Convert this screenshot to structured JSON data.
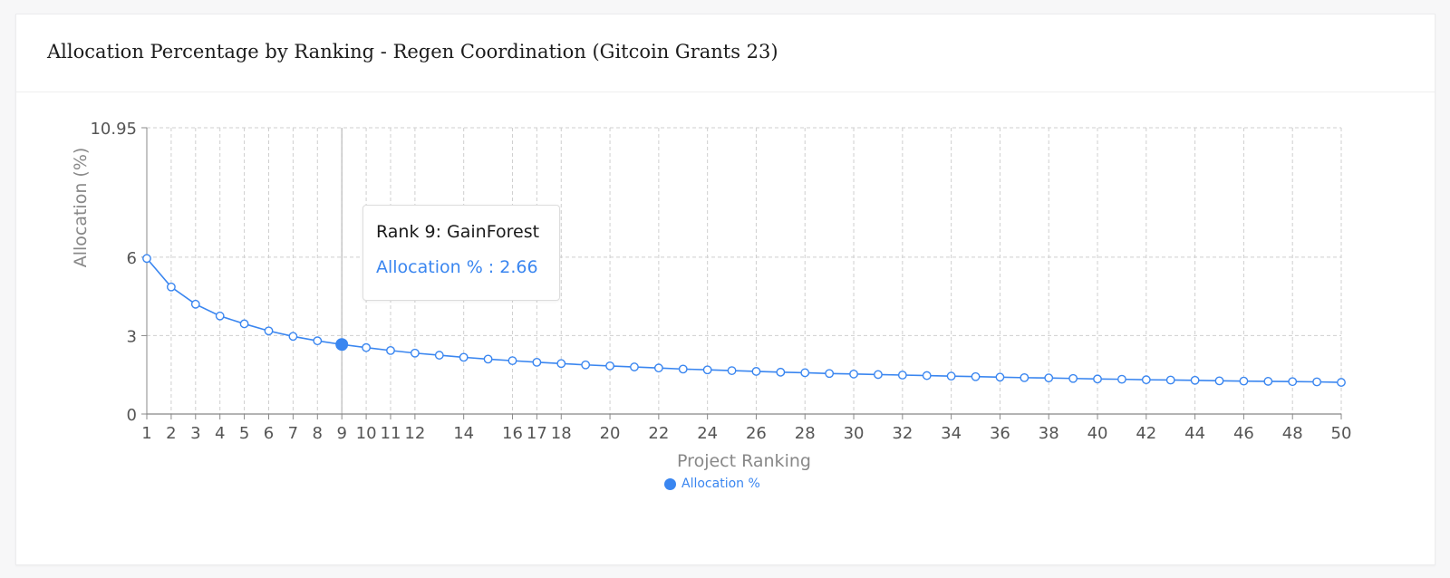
{
  "colors": {
    "series": "#3a86f0",
    "grid": "#cfcfcf",
    "axis": "#888888",
    "tick_text": "#555555",
    "label_text": "#888888"
  },
  "card": {
    "title": "Allocation Percentage by Ranking - Regen Coordination (Gitcoin Grants 23)"
  },
  "tooltip": {
    "title": "Rank 9: GainForest",
    "value_label": "Allocation % : 2.66"
  },
  "legend": {
    "label": "Allocation %"
  },
  "chart_data": {
    "type": "line",
    "title": "Allocation Percentage by Ranking - Regen Coordination (Gitcoin Grants 23)",
    "xlabel": "Project Ranking",
    "ylabel": "Allocation (%)",
    "xlim": [
      1,
      50
    ],
    "ylim": [
      0,
      10.95
    ],
    "y_ticks": [
      0,
      3,
      6,
      10.95
    ],
    "y_tick_labels": [
      "0",
      "3",
      "6",
      "10.95"
    ],
    "x_ticks": [
      1,
      2,
      3,
      4,
      5,
      6,
      7,
      8,
      9,
      10,
      11,
      12,
      14,
      16,
      17,
      18,
      20,
      22,
      24,
      26,
      28,
      30,
      32,
      34,
      36,
      38,
      40,
      42,
      44,
      46,
      48,
      50
    ],
    "x_tick_labels": [
      "1",
      "2",
      "3",
      "4",
      "5",
      "6",
      "7",
      "8",
      "9",
      "10",
      "11",
      "12",
      "14",
      "16",
      "17",
      "18",
      "20",
      "22",
      "24",
      "26",
      "28",
      "30",
      "32",
      "34",
      "36",
      "38",
      "40",
      "42",
      "44",
      "46",
      "48",
      "50"
    ],
    "grid": true,
    "legend_position": "bottom",
    "highlighted_index": 8,
    "series": [
      {
        "name": "Allocation %",
        "x": [
          1,
          2,
          3,
          4,
          5,
          6,
          7,
          8,
          9,
          10,
          11,
          12,
          13,
          14,
          15,
          16,
          17,
          18,
          19,
          20,
          21,
          22,
          23,
          24,
          25,
          26,
          27,
          28,
          29,
          30,
          31,
          32,
          33,
          34,
          35,
          36,
          37,
          38,
          39,
          40,
          41,
          42,
          43,
          44,
          45,
          46,
          47,
          48,
          49,
          50
        ],
        "y": [
          5.95,
          4.86,
          4.2,
          3.75,
          3.45,
          3.18,
          2.97,
          2.8,
          2.66,
          2.54,
          2.43,
          2.33,
          2.25,
          2.17,
          2.1,
          2.04,
          1.98,
          1.93,
          1.88,
          1.84,
          1.8,
          1.76,
          1.72,
          1.69,
          1.66,
          1.63,
          1.6,
          1.58,
          1.55,
          1.53,
          1.51,
          1.49,
          1.47,
          1.45,
          1.43,
          1.41,
          1.39,
          1.38,
          1.36,
          1.34,
          1.33,
          1.31,
          1.3,
          1.29,
          1.27,
          1.26,
          1.25,
          1.24,
          1.23,
          1.21
        ]
      }
    ]
  }
}
